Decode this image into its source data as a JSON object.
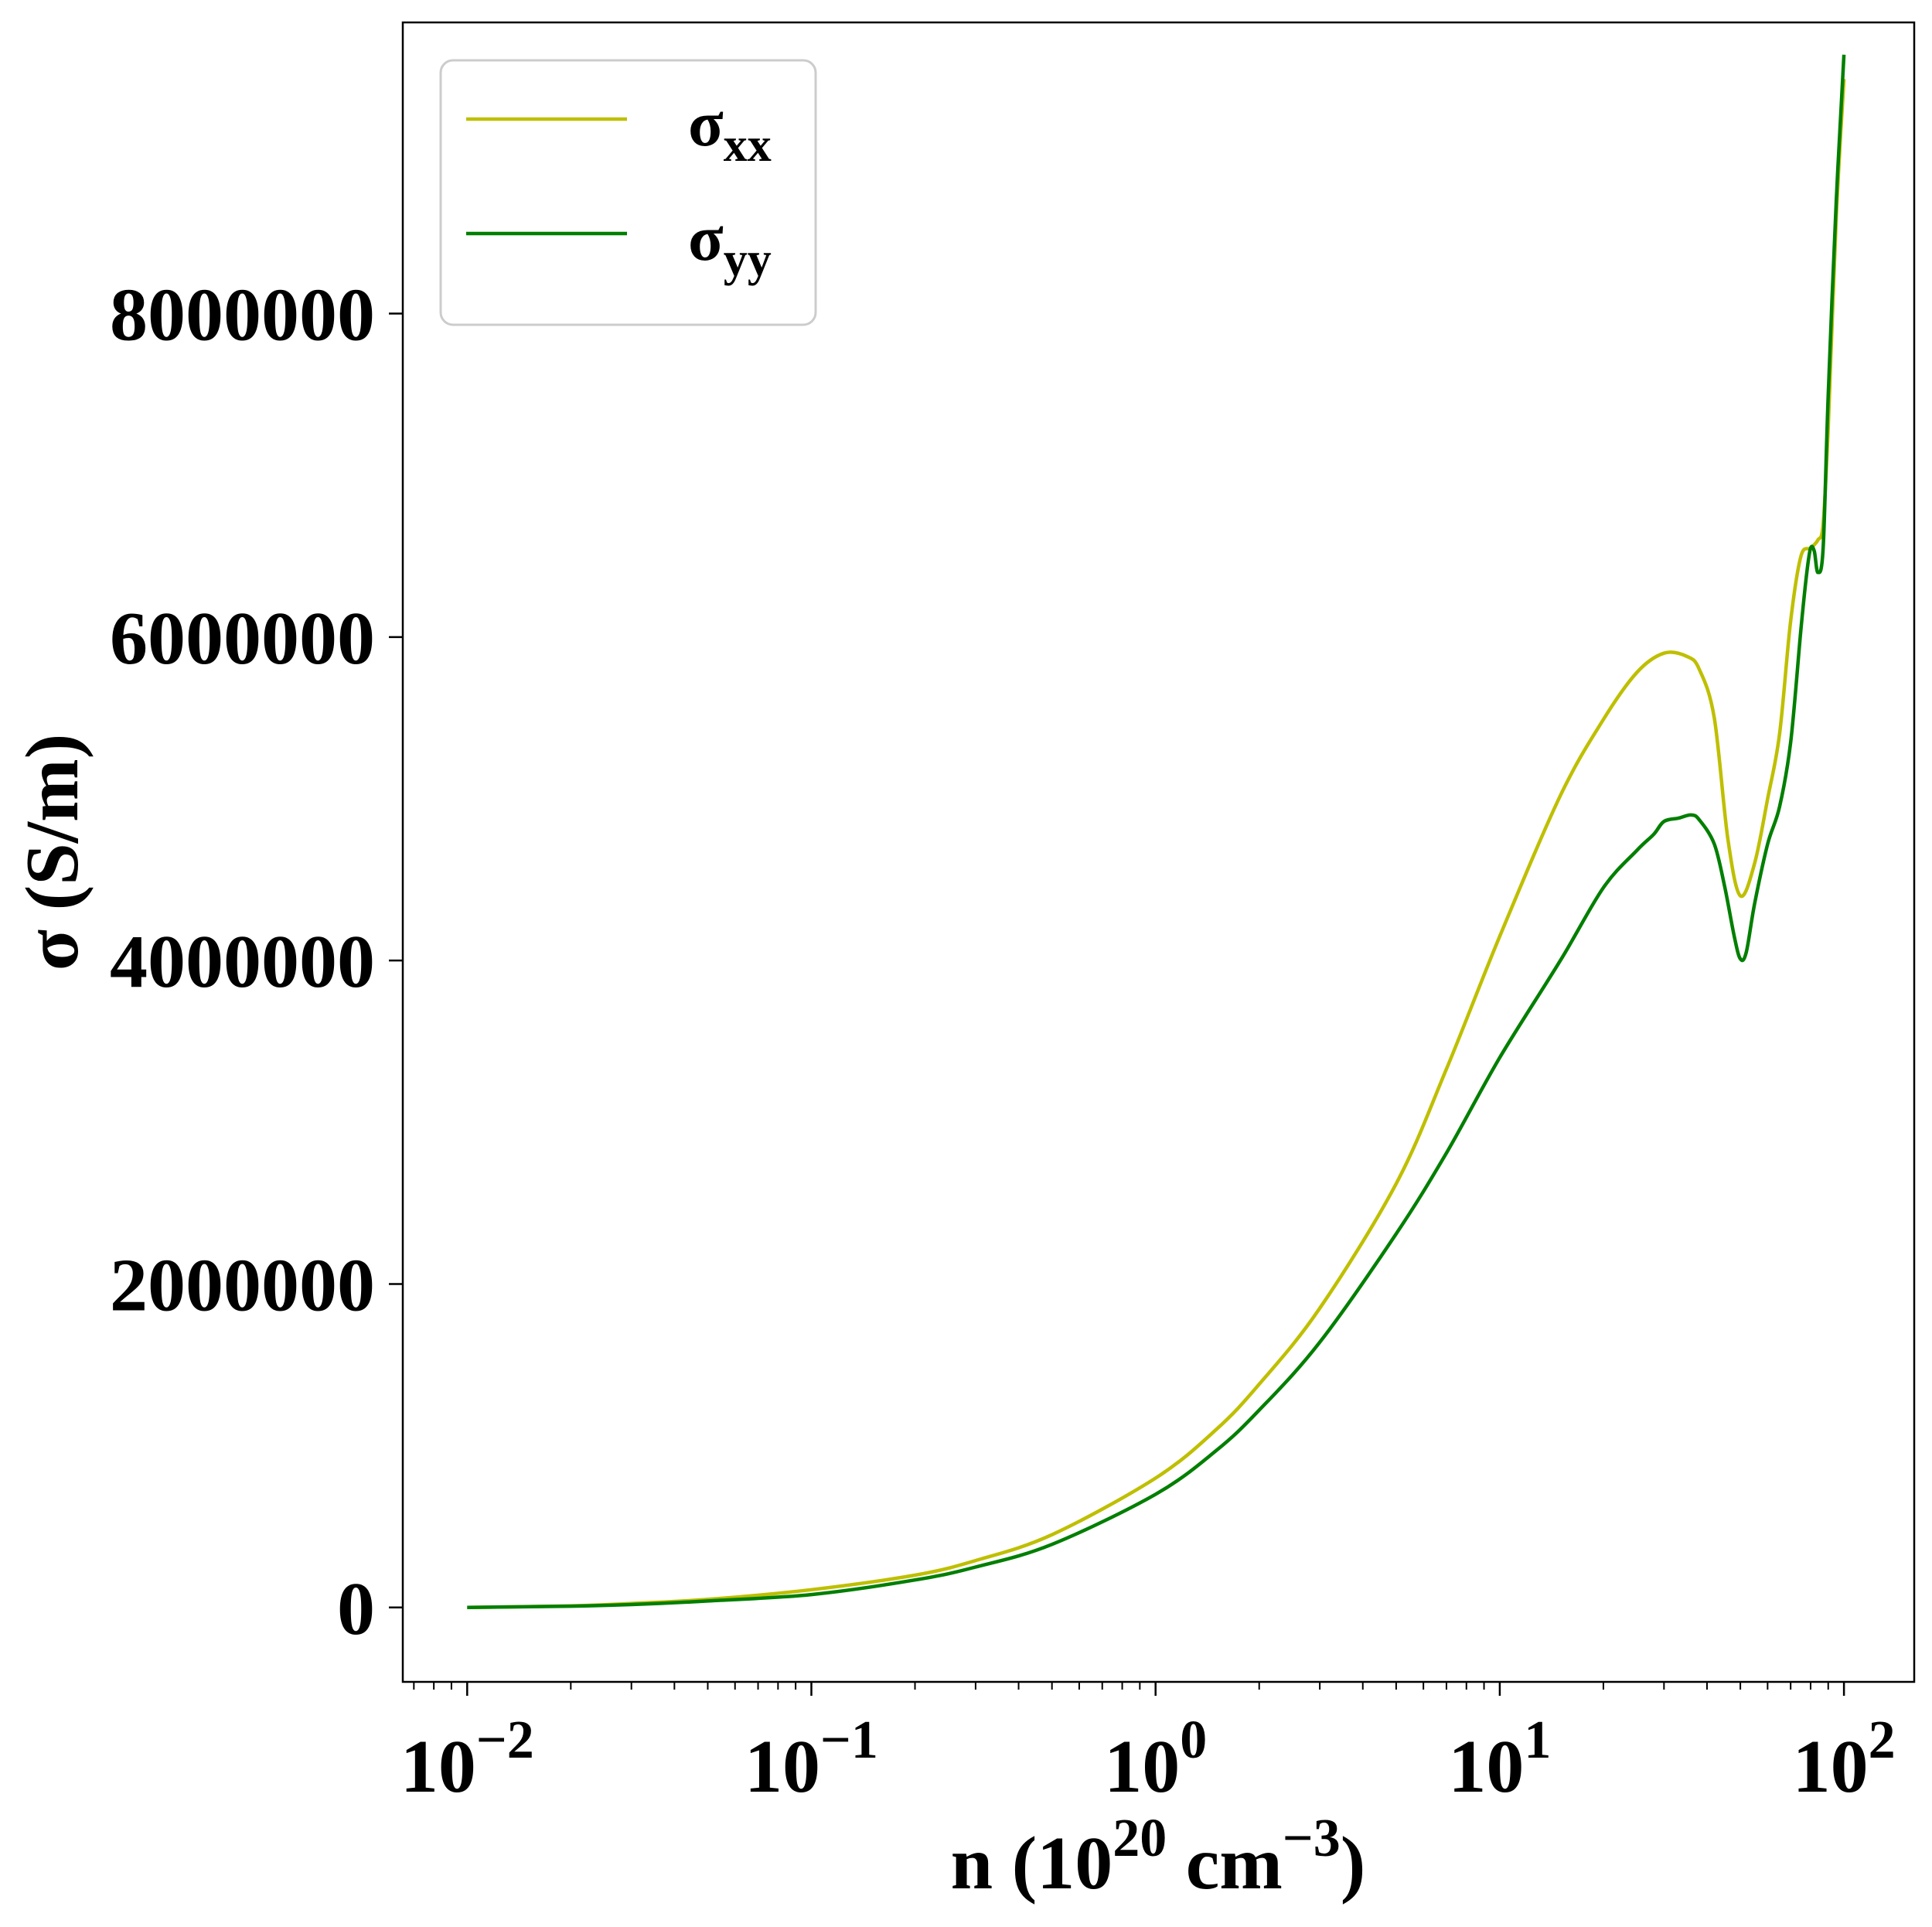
{
  "chart_data": {
    "type": "line",
    "title": "",
    "xlabel": {
      "base": "n (10",
      "sup1": "20",
      "mid": " cm",
      "sup2": "−3",
      "end": ")"
    },
    "ylabel": "σ (S/m)",
    "x_scale": "log",
    "xlim": [
      0.0065,
      160
    ],
    "ylim": [
      -460000,
      9800000
    ],
    "x_ticks": [
      {
        "value": 0.01,
        "base": "10",
        "exp": "−2"
      },
      {
        "value": 0.1,
        "base": "10",
        "exp": "−1"
      },
      {
        "value": 1,
        "base": "10",
        "exp": "0"
      },
      {
        "value": 10,
        "base": "10",
        "exp": "1"
      },
      {
        "value": 100,
        "base": "10",
        "exp": "2"
      }
    ],
    "y_ticks": [
      {
        "value": 0,
        "label": "0"
      },
      {
        "value": 2000000,
        "label": "2000000"
      },
      {
        "value": 4000000,
        "label": "4000000"
      },
      {
        "value": 6000000,
        "label": "6000000"
      },
      {
        "value": 8000000,
        "label": "8000000"
      }
    ],
    "grid": false,
    "legend": "top-left",
    "series": [
      {
        "name": "σ",
        "subscript": "xx",
        "color": "#bfbf00",
        "x": [
          0.01,
          0.02,
          0.03,
          0.05,
          0.1,
          0.2,
          0.3,
          0.5,
          1,
          1.5,
          2,
          3,
          5,
          7,
          10,
          15,
          20,
          25,
          30,
          35,
          38,
          42,
          46,
          50,
          55,
          60,
          65,
          70,
          75,
          80,
          84,
          87,
          90,
          95,
          100
        ],
        "y": [
          0,
          10000,
          25000,
          50000,
          110000,
          200000,
          290000,
          450000,
          800000,
          1100000,
          1380000,
          1850000,
          2620000,
          3330000,
          4150000,
          5020000,
          5490000,
          5780000,
          5900000,
          5880000,
          5800000,
          5500000,
          4750000,
          4400000,
          4600000,
          5000000,
          5400000,
          6100000,
          6500000,
          6550000,
          6600000,
          6700000,
          7300000,
          8600000,
          9450000
        ]
      },
      {
        "name": "σ",
        "subscript": "yy",
        "color": "#007f00",
        "x": [
          0.01,
          0.02,
          0.03,
          0.05,
          0.1,
          0.2,
          0.3,
          0.5,
          1,
          1.5,
          2,
          3,
          5,
          7,
          10,
          15,
          20,
          25,
          28,
          30,
          33,
          36,
          38,
          42,
          45,
          48,
          50,
          52,
          55,
          60,
          65,
          70,
          75,
          78,
          80,
          82,
          84,
          87,
          90,
          95,
          100
        ],
        "y": [
          0,
          8000,
          18000,
          40000,
          80000,
          170000,
          250000,
          390000,
          700000,
          970000,
          1220000,
          1640000,
          2310000,
          2810000,
          3400000,
          4000000,
          4450000,
          4680000,
          4780000,
          4860000,
          4880000,
          4900000,
          4870000,
          4720000,
          4460000,
          4150000,
          4010000,
          4050000,
          4350000,
          4720000,
          4950000,
          5350000,
          6050000,
          6400000,
          6550000,
          6530000,
          6400000,
          6550000,
          7500000,
          8700000,
          9600000
        ]
      }
    ]
  }
}
